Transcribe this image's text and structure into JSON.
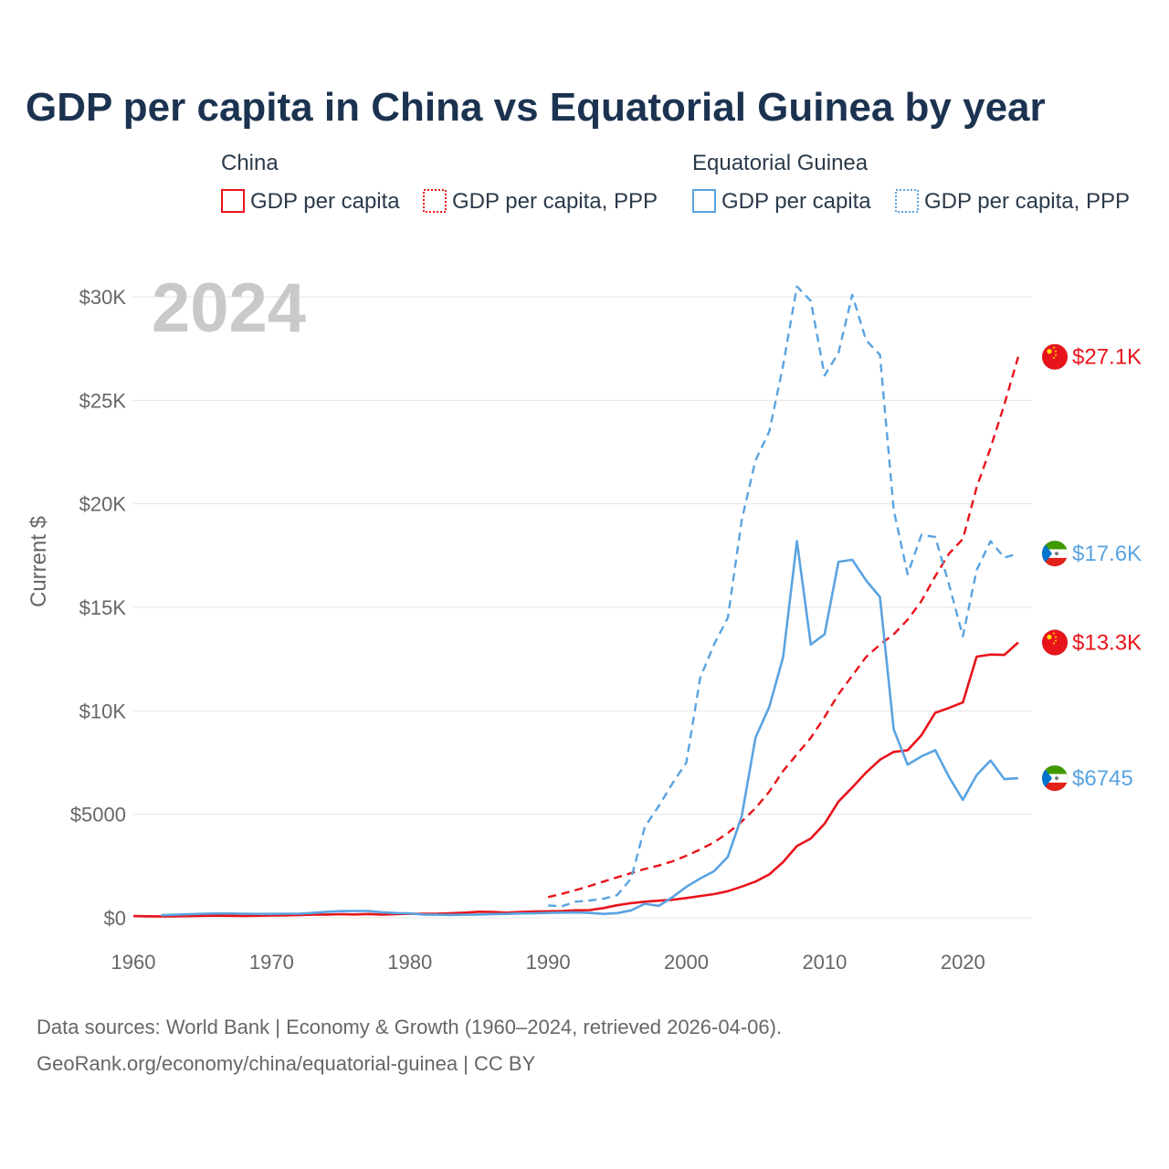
{
  "chart_data": {
    "type": "line",
    "title": "GDP per capita in China vs Equatorial Guinea by year",
    "ylabel": "Current $",
    "xlabel": "",
    "xlim": [
      1960,
      2024
    ],
    "ylim": [
      0,
      30000
    ],
    "x_ticks": [
      1960,
      1970,
      1980,
      1990,
      2000,
      2010,
      2020
    ],
    "x_tick_labels": [
      "1960",
      "1970",
      "1980",
      "1990",
      "2000",
      "2010",
      "2020"
    ],
    "y_ticks": [
      0,
      5000,
      10000,
      15000,
      20000,
      25000,
      30000
    ],
    "y_tick_labels": [
      "$0",
      "$5000",
      "$10K",
      "$15K",
      "$20K",
      "$25K",
      "$30K"
    ],
    "year_stamp": "2024",
    "legend": {
      "groups": [
        {
          "name": "China",
          "entries": [
            "GDP per capita",
            "GDP per capita, PPP"
          ]
        },
        {
          "name": "Equatorial Guinea",
          "entries": [
            "GDP per capita",
            "GDP per capita, PPP"
          ]
        }
      ]
    },
    "series": [
      {
        "name": "China GDP per capita",
        "color": "#e8141b",
        "dash": "solid",
        "end_label": "$13.3K",
        "points": [
          [
            1960,
            90
          ],
          [
            1961,
            76
          ],
          [
            1962,
            70
          ],
          [
            1963,
            74
          ],
          [
            1964,
            85
          ],
          [
            1965,
            98
          ],
          [
            1966,
            104
          ],
          [
            1967,
            96
          ],
          [
            1968,
            91
          ],
          [
            1969,
            100
          ],
          [
            1970,
            113
          ],
          [
            1971,
            119
          ],
          [
            1972,
            132
          ],
          [
            1973,
            157
          ],
          [
            1974,
            160
          ],
          [
            1975,
            178
          ],
          [
            1976,
            165
          ],
          [
            1977,
            185
          ],
          [
            1978,
            156
          ],
          [
            1979,
            183
          ],
          [
            1980,
            195
          ],
          [
            1981,
            197
          ],
          [
            1982,
            203
          ],
          [
            1983,
            225
          ],
          [
            1984,
            250
          ],
          [
            1985,
            294
          ],
          [
            1986,
            282
          ],
          [
            1987,
            252
          ],
          [
            1988,
            284
          ],
          [
            1989,
            311
          ],
          [
            1990,
            318
          ],
          [
            1991,
            333
          ],
          [
            1992,
            366
          ],
          [
            1993,
            377
          ],
          [
            1994,
            473
          ],
          [
            1995,
            610
          ],
          [
            1996,
            709
          ],
          [
            1997,
            782
          ],
          [
            1998,
            829
          ],
          [
            1999,
            873
          ],
          [
            2000,
            959
          ],
          [
            2001,
            1053
          ],
          [
            2002,
            1149
          ],
          [
            2003,
            1289
          ],
          [
            2004,
            1509
          ],
          [
            2005,
            1753
          ],
          [
            2006,
            2099
          ],
          [
            2007,
            2694
          ],
          [
            2008,
            3468
          ],
          [
            2009,
            3832
          ],
          [
            2010,
            4550
          ],
          [
            2011,
            5614
          ],
          [
            2012,
            6301
          ],
          [
            2013,
            7020
          ],
          [
            2014,
            7636
          ],
          [
            2015,
            8017
          ],
          [
            2016,
            8094
          ],
          [
            2017,
            8817
          ],
          [
            2018,
            9905
          ],
          [
            2019,
            10144
          ],
          [
            2020,
            10409
          ],
          [
            2021,
            12618
          ],
          [
            2022,
            12720
          ],
          [
            2023,
            12700
          ],
          [
            2024,
            13300
          ]
        ]
      },
      {
        "name": "China GDP per capita, PPP",
        "color": "#e8141b",
        "dash": "dashed",
        "end_label": "$27.1K",
        "points": [
          [
            1990,
            1000
          ],
          [
            1991,
            1160
          ],
          [
            1992,
            1340
          ],
          [
            1993,
            1540
          ],
          [
            1994,
            1750
          ],
          [
            1995,
            1960
          ],
          [
            1996,
            2160
          ],
          [
            1997,
            2360
          ],
          [
            1998,
            2530
          ],
          [
            1999,
            2730
          ],
          [
            2000,
            3000
          ],
          [
            2001,
            3300
          ],
          [
            2002,
            3650
          ],
          [
            2003,
            4100
          ],
          [
            2004,
            4650
          ],
          [
            2005,
            5300
          ],
          [
            2006,
            6100
          ],
          [
            2007,
            7100
          ],
          [
            2008,
            7900
          ],
          [
            2009,
            8700
          ],
          [
            2010,
            9700
          ],
          [
            2011,
            10800
          ],
          [
            2012,
            11700
          ],
          [
            2013,
            12600
          ],
          [
            2014,
            13200
          ],
          [
            2015,
            13700
          ],
          [
            2016,
            14400
          ],
          [
            2017,
            15300
          ],
          [
            2018,
            16500
          ],
          [
            2019,
            17600
          ],
          [
            2020,
            18300
          ],
          [
            2021,
            20800
          ],
          [
            2022,
            22700
          ],
          [
            2023,
            24800
          ],
          [
            2024,
            27100
          ]
        ]
      },
      {
        "name": "Equatorial Guinea GDP per capita",
        "color": "#5aa3e0",
        "dash": "solid",
        "end_label": "$6745",
        "points": [
          [
            1962,
            130
          ],
          [
            1963,
            150
          ],
          [
            1964,
            170
          ],
          [
            1965,
            200
          ],
          [
            1966,
            210
          ],
          [
            1967,
            210
          ],
          [
            1968,
            200
          ],
          [
            1969,
            190
          ],
          [
            1970,
            190
          ],
          [
            1971,
            200
          ],
          [
            1972,
            200
          ],
          [
            1973,
            240
          ],
          [
            1974,
            290
          ],
          [
            1975,
            320
          ],
          [
            1976,
            330
          ],
          [
            1977,
            330
          ],
          [
            1978,
            270
          ],
          [
            1979,
            230
          ],
          [
            1980,
            210
          ],
          [
            1981,
            160
          ],
          [
            1982,
            150
          ],
          [
            1983,
            140
          ],
          [
            1984,
            150
          ],
          [
            1985,
            160
          ],
          [
            1986,
            180
          ],
          [
            1987,
            190
          ],
          [
            1988,
            210
          ],
          [
            1989,
            220
          ],
          [
            1990,
            240
          ],
          [
            1991,
            250
          ],
          [
            1992,
            260
          ],
          [
            1993,
            240
          ],
          [
            1994,
            190
          ],
          [
            1995,
            230
          ],
          [
            1996,
            360
          ],
          [
            1997,
            680
          ],
          [
            1998,
            580
          ],
          [
            1999,
            1000
          ],
          [
            2000,
            1500
          ],
          [
            2001,
            1900
          ],
          [
            2002,
            2250
          ],
          [
            2003,
            2950
          ],
          [
            2004,
            4900
          ],
          [
            2005,
            8700
          ],
          [
            2006,
            10200
          ],
          [
            2007,
            12600
          ],
          [
            2008,
            18200
          ],
          [
            2009,
            13200
          ],
          [
            2010,
            13700
          ],
          [
            2011,
            17200
          ],
          [
            2012,
            17300
          ],
          [
            2013,
            16300
          ],
          [
            2014,
            15500
          ],
          [
            2015,
            9100
          ],
          [
            2016,
            7400
          ],
          [
            2017,
            7800
          ],
          [
            2018,
            8100
          ],
          [
            2019,
            6800
          ],
          [
            2020,
            5700
          ],
          [
            2021,
            6900
          ],
          [
            2022,
            7600
          ],
          [
            2023,
            6700
          ],
          [
            2024,
            6745
          ]
        ]
      },
      {
        "name": "Equatorial Guinea GDP per capita, PPP",
        "color": "#5aa3e0",
        "dash": "dashed",
        "end_label": "$17.6K",
        "points": [
          [
            1990,
            600
          ],
          [
            1991,
            560
          ],
          [
            1992,
            780
          ],
          [
            1993,
            840
          ],
          [
            1994,
            920
          ],
          [
            1995,
            1100
          ],
          [
            1996,
            1900
          ],
          [
            1997,
            4400
          ],
          [
            1998,
            5400
          ],
          [
            1999,
            6500
          ],
          [
            2000,
            7500
          ],
          [
            2001,
            11600
          ],
          [
            2002,
            13200
          ],
          [
            2003,
            14500
          ],
          [
            2004,
            19200
          ],
          [
            2005,
            22100
          ],
          [
            2006,
            23500
          ],
          [
            2007,
            26700
          ],
          [
            2008,
            30500
          ],
          [
            2009,
            29800
          ],
          [
            2010,
            26200
          ],
          [
            2011,
            27300
          ],
          [
            2012,
            30100
          ],
          [
            2013,
            27900
          ],
          [
            2014,
            27200
          ],
          [
            2015,
            19700
          ],
          [
            2016,
            16600
          ],
          [
            2017,
            18500
          ],
          [
            2018,
            18400
          ],
          [
            2019,
            16100
          ],
          [
            2020,
            13600
          ],
          [
            2021,
            16800
          ],
          [
            2022,
            18200
          ],
          [
            2023,
            17400
          ],
          [
            2024,
            17600
          ]
        ]
      }
    ],
    "source_lines": [
      "Data sources: World Bank | Economy & Growth (1960–2024, retrieved 2026-04-06).",
      "GeoRank.org/economy/china/equatorial-guinea | CC BY"
    ]
  },
  "colors": {
    "china": "#e8141b",
    "equatorial_guinea": "#5aa3e0",
    "title": "#1b3350",
    "axis_text": "#666666"
  },
  "icons": {
    "china": "china-flag-icon",
    "equatorial_guinea": "equatorial-guinea-flag-icon"
  }
}
